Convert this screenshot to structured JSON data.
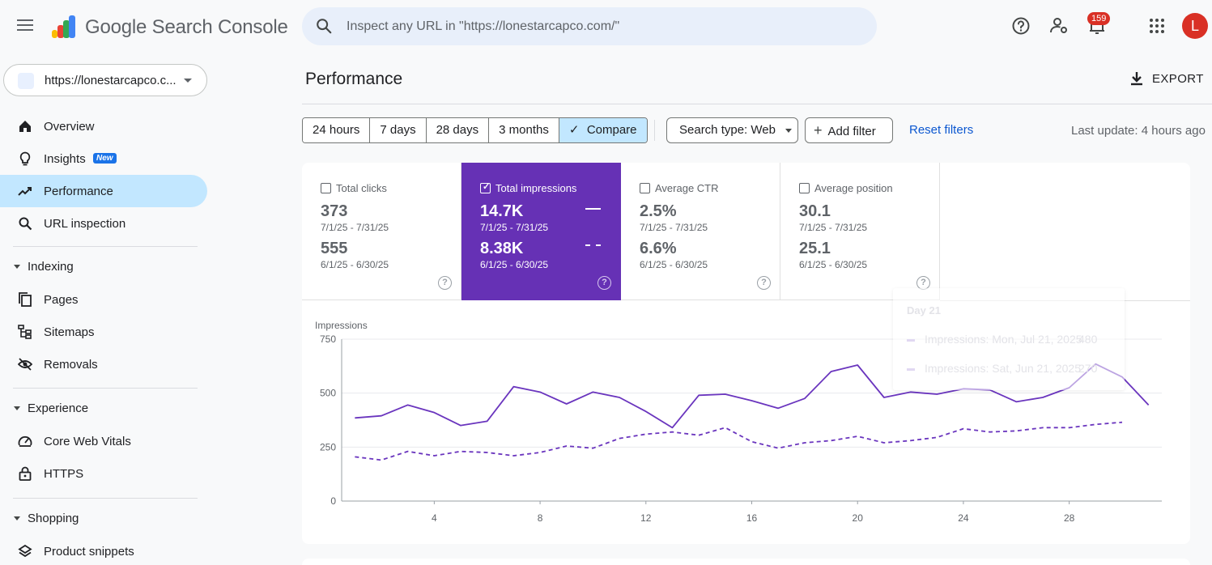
{
  "app": {
    "brand": "Google Search Console",
    "notification_count": "159",
    "avatar_initial": "L"
  },
  "search": {
    "placeholder": "Inspect any URL in \"https://lonestarcapco.com/\""
  },
  "property": {
    "label": "https://lonestarcapco.c..."
  },
  "sidebar": {
    "items": [
      {
        "label": "Overview",
        "icon": "home-icon"
      },
      {
        "label": "Insights",
        "icon": "lightbulb-icon",
        "badge": "New"
      },
      {
        "label": "Performance",
        "icon": "trending-up-icon",
        "active": true
      },
      {
        "label": "URL inspection",
        "icon": "search-icon"
      }
    ],
    "sections": [
      {
        "label": "Indexing",
        "items": [
          {
            "label": "Pages",
            "icon": "pages-icon"
          },
          {
            "label": "Sitemaps",
            "icon": "sitemap-icon"
          },
          {
            "label": "Removals",
            "icon": "eye-off-icon"
          }
        ]
      },
      {
        "label": "Experience",
        "items": [
          {
            "label": "Core Web Vitals",
            "icon": "speed-icon"
          },
          {
            "label": "HTTPS",
            "icon": "lock-icon"
          }
        ]
      },
      {
        "label": "Shopping",
        "items": [
          {
            "label": "Product snippets",
            "icon": "layers-icon"
          }
        ]
      }
    ]
  },
  "main": {
    "title": "Performance",
    "export_label": "EXPORT",
    "ranges": [
      "24 hours",
      "7 days",
      "28 days",
      "3 months"
    ],
    "compare_label": "Compare",
    "search_type_label": "Search type: Web",
    "add_filter_label": "Add filter",
    "reset_label": "Reset filters",
    "last_update": "Last update: 4 hours ago"
  },
  "metrics": [
    {
      "label": "Total clicks",
      "checked": false,
      "current_value": "373",
      "current_range": "7/1/25 - 7/31/25",
      "previous_value": "555",
      "previous_range": "6/1/25 - 6/30/25"
    },
    {
      "label": "Total impressions",
      "checked": true,
      "current_value": "14.7K",
      "current_range": "7/1/25 - 7/31/25",
      "previous_value": "8.38K",
      "previous_range": "6/1/25 - 6/30/25"
    },
    {
      "label": "Average CTR",
      "checked": false,
      "current_value": "2.5%",
      "current_range": "7/1/25 - 7/31/25",
      "previous_value": "6.6%",
      "previous_range": "6/1/25 - 6/30/25"
    },
    {
      "label": "Average position",
      "checked": false,
      "current_value": "30.1",
      "current_range": "7/1/25 - 7/31/25",
      "previous_value": "25.1",
      "previous_range": "6/1/25 - 6/30/25"
    }
  ],
  "tooltip": {
    "title": "Day 21",
    "rows": [
      {
        "label": "Impressions: Mon, Jul 21, 2025",
        "value": "480"
      },
      {
        "label": "Impressions: Sat, Jun 21, 2025",
        "value": "270"
      }
    ]
  },
  "chart_data": {
    "type": "line",
    "ylabel": "Impressions",
    "ylim": [
      0,
      750
    ],
    "yticks": [
      0,
      250,
      500,
      750
    ],
    "xlim": [
      0.5,
      31.5
    ],
    "xticks": [
      4,
      8,
      12,
      16,
      20,
      24,
      28
    ],
    "grid": true,
    "line_color": "#6a35be",
    "series": [
      {
        "style": "solid",
        "x": [
          1,
          2,
          3,
          4,
          5,
          6,
          7,
          8,
          9,
          10,
          11,
          12,
          13,
          14,
          15,
          16,
          17,
          18,
          19,
          20,
          21,
          22,
          23,
          24,
          25,
          26,
          27,
          28,
          29,
          30,
          31
        ],
        "values": [
          385,
          395,
          445,
          410,
          350,
          370,
          530,
          505,
          450,
          505,
          480,
          415,
          340,
          490,
          495,
          465,
          430,
          475,
          600,
          630,
          480,
          505,
          495,
          520,
          515,
          460,
          480,
          525,
          635,
          575,
          445
        ]
      },
      {
        "style": "dashed",
        "x": [
          1,
          2,
          3,
          4,
          5,
          6,
          7,
          8,
          9,
          10,
          11,
          12,
          13,
          14,
          15,
          16,
          17,
          18,
          19,
          20,
          21,
          22,
          23,
          24,
          25,
          26,
          27,
          28,
          29,
          30
        ],
        "values": [
          205,
          190,
          230,
          210,
          230,
          225,
          210,
          225,
          255,
          245,
          290,
          310,
          320,
          305,
          340,
          275,
          245,
          270,
          280,
          300,
          270,
          280,
          295,
          335,
          320,
          325,
          340,
          340,
          355,
          365
        ]
      }
    ]
  }
}
